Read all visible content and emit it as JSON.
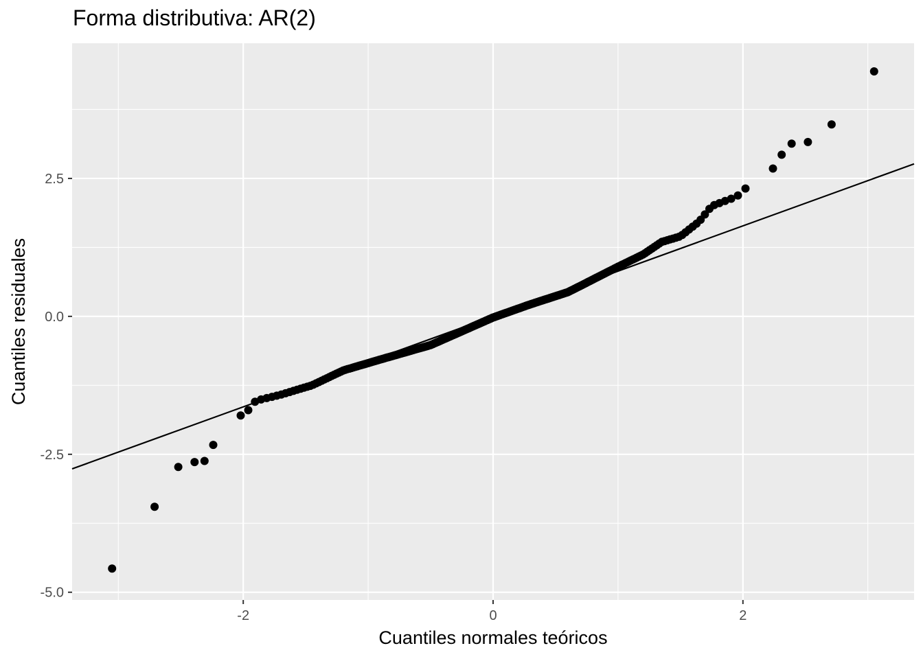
{
  "chart_data": {
    "type": "scatter",
    "title": "Forma distributiva: AR(2)",
    "xlabel": "Cuantiles normales teóricos",
    "ylabel": "Cuantiles residuales",
    "xlim": [
      -3.37,
      3.37
    ],
    "ylim": [
      -5.14,
      4.95
    ],
    "x_ticks": [
      -2,
      0,
      2
    ],
    "x_tick_labels": [
      "-2",
      "0",
      "2"
    ],
    "y_ticks": [
      -5,
      -2.5,
      0,
      2.5
    ],
    "y_tick_labels": [
      "-5.0",
      "-2.5",
      "0.0",
      "2.5"
    ],
    "grid": true,
    "background": "#ebebeb",
    "grid_color": "#ffffff",
    "point_color": "#000000",
    "reference_line": {
      "intercept": 0.0,
      "slope": 0.82
    },
    "n_points": 300,
    "tail_points": [
      [
        -3.05,
        -4.57
      ],
      [
        -2.71,
        -3.45
      ],
      [
        -2.52,
        -2.73
      ],
      [
        -2.39,
        -2.64
      ],
      [
        -2.31,
        -2.62
      ],
      [
        -2.24,
        -2.33
      ],
      [
        2.24,
        2.68
      ],
      [
        2.31,
        2.93
      ],
      [
        2.39,
        3.13
      ],
      [
        2.52,
        3.16
      ],
      [
        2.71,
        3.48
      ],
      [
        3.05,
        4.44
      ]
    ]
  }
}
